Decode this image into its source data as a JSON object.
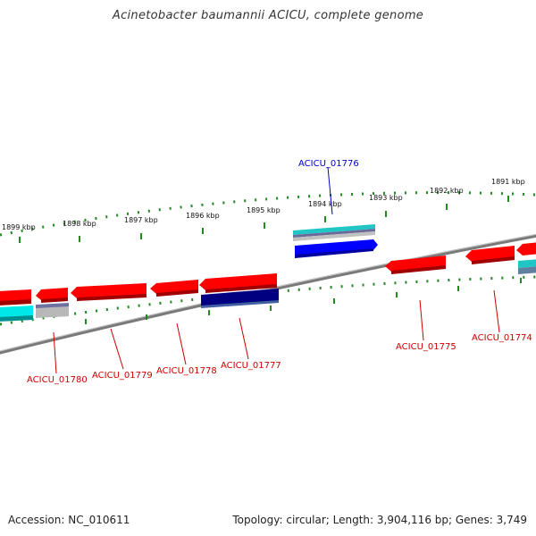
{
  "title": "Acinetobacter baumannii ACICU, complete genome",
  "footer": {
    "accession": "Accession: NC_010611",
    "summary": "Topology: circular; Length: 3,904,116 bp; Genes: 3,749"
  },
  "ticks": [
    "1899 kbp",
    "1898 kbp",
    "1897 kbp",
    "1896 kbp",
    "1895 kbp",
    "1894 kbp",
    "1893 kbp",
    "1892 kbp",
    "1891 kbp"
  ],
  "gene_labels": [
    "ACICU_01776",
    "ACICU_01780",
    "ACICU_01779",
    "ACICU_01778",
    "ACICU_01777",
    "ACICU_01775",
    "ACICU_01774"
  ],
  "colors": {
    "red": "#ff0000",
    "blue": "#0000ff",
    "navy": "#000080",
    "cyan": "#00e0e0",
    "gray": "#b0b0b0",
    "backbone": "#808080",
    "tick": "#228b22",
    "label_red": "#cc0000",
    "label_blue": "#0000cc"
  }
}
